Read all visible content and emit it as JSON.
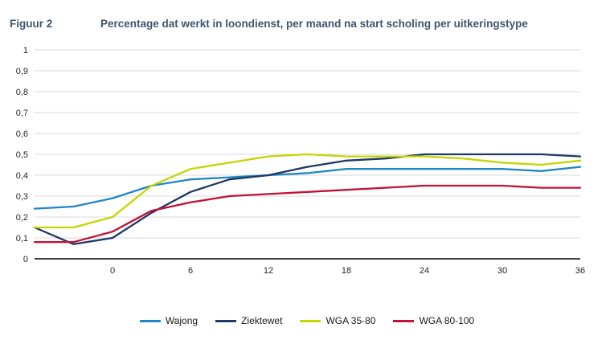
{
  "figure_label": "Figuur 2",
  "title": "Percentage dat werkt in loondienst, per maand na start scholing per uitkeringstype",
  "colors": {
    "title_text": "#3E566F",
    "grid_line": "#D9D9D9",
    "axis_line": "#000000",
    "tick_text": "#262626",
    "legend_text": "#1A1A1A",
    "background": "#FFFFFF"
  },
  "chart_data": {
    "type": "line",
    "x": [
      -6,
      -3,
      0,
      3,
      6,
      9,
      12,
      15,
      18,
      21,
      24,
      27,
      30,
      33,
      36
    ],
    "xlim": [
      -6,
      36
    ],
    "ylim": [
      0,
      1
    ],
    "x_tick_values": [
      0,
      6,
      12,
      18,
      24,
      30,
      36
    ],
    "x_tick_labels": [
      "0",
      "6",
      "12",
      "18",
      "24",
      "30",
      "36"
    ],
    "y_tick_values": [
      0,
      0.1,
      0.2,
      0.3,
      0.4,
      0.5,
      0.6,
      0.7,
      0.8,
      0.9,
      1
    ],
    "y_tick_labels": [
      "0",
      "0,1",
      "0,2",
      "0,3",
      "0,4",
      "0,5",
      "0,6",
      "0,7",
      "0,8",
      "0,9",
      "1"
    ],
    "grid": "horizontal",
    "legend_position": "bottom",
    "series": [
      {
        "name": "Wajong",
        "color": "#1F87C6",
        "values": [
          0.24,
          0.25,
          0.29,
          0.35,
          0.38,
          0.39,
          0.4,
          0.41,
          0.43,
          0.43,
          0.43,
          0.43,
          0.43,
          0.42,
          0.44
        ]
      },
      {
        "name": "Ziektewet",
        "color": "#1F3864",
        "values": [
          0.15,
          0.07,
          0.1,
          0.22,
          0.32,
          0.38,
          0.4,
          0.44,
          0.47,
          0.48,
          0.5,
          0.5,
          0.5,
          0.5,
          0.49
        ]
      },
      {
        "name": "WGA 35-80",
        "color": "#C4D600",
        "values": [
          0.15,
          0.15,
          0.2,
          0.35,
          0.43,
          0.46,
          0.49,
          0.5,
          0.49,
          0.49,
          0.49,
          0.48,
          0.46,
          0.45,
          0.47
        ]
      },
      {
        "name": "WGA 80-100",
        "color": "#C11236",
        "values": [
          0.08,
          0.08,
          0.13,
          0.23,
          0.27,
          0.3,
          0.31,
          0.32,
          0.33,
          0.34,
          0.35,
          0.35,
          0.35,
          0.34,
          0.34
        ]
      }
    ]
  }
}
